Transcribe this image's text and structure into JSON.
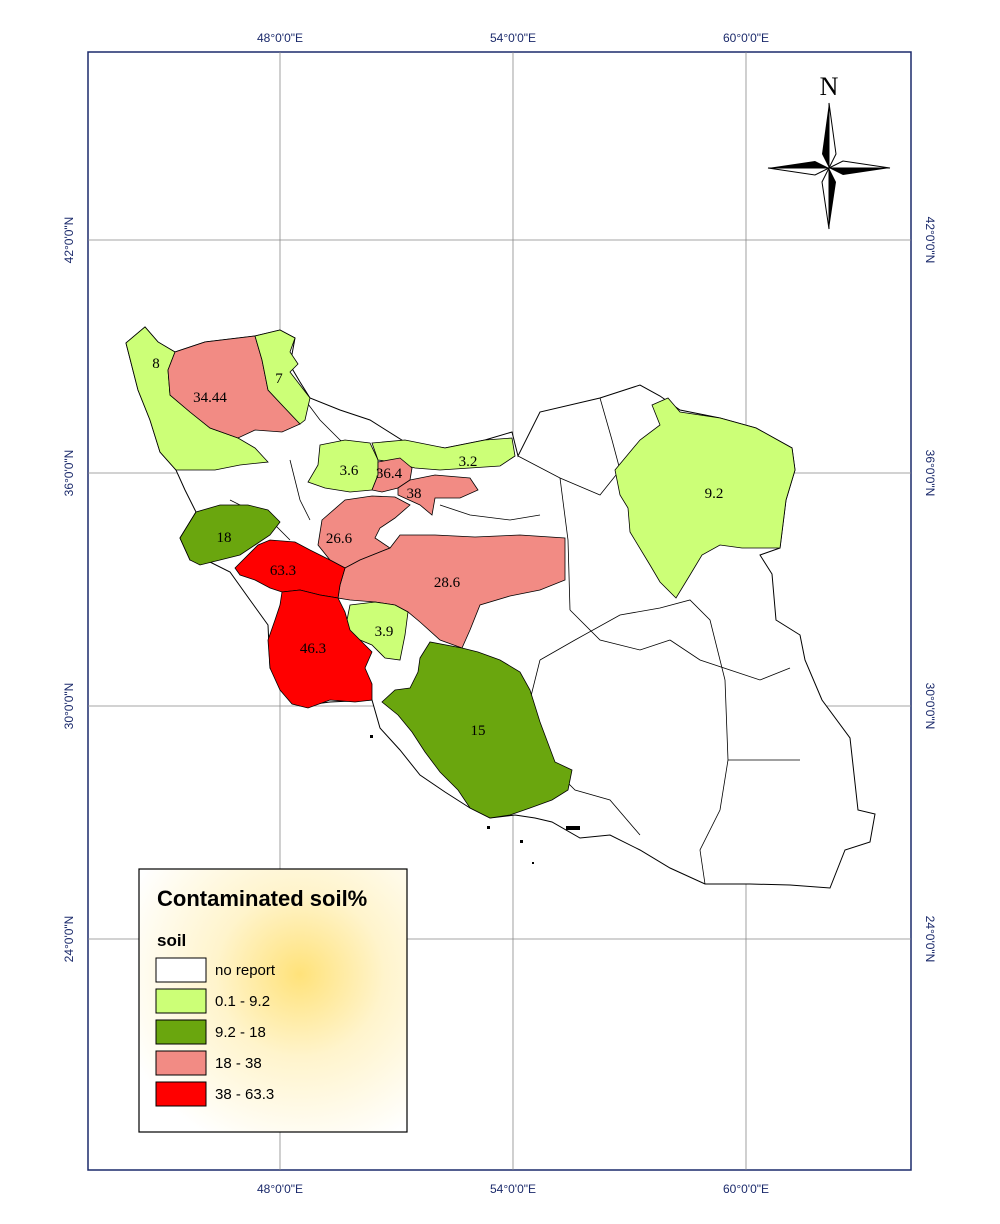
{
  "graticule": {
    "longitudes": [
      "48°0'0\"E",
      "54°0'0\"E",
      "60°0'0\"E"
    ],
    "latitudes": [
      "42°0'0\"N",
      "36°0'0\"N",
      "30°0'0\"N",
      "24°0'0\"N"
    ]
  },
  "north_arrow": {
    "label": "N"
  },
  "legend": {
    "title": "Contaminated soil%",
    "subtitle": "soil",
    "classes": [
      {
        "label": "no report",
        "color": "#ffffff"
      },
      {
        "label": "0.1 - 9.2",
        "color": "#ccff77"
      },
      {
        "label": "9.2 - 18",
        "color": "#6aa60e"
      },
      {
        "label": "18 - 38",
        "color": "#f28b84"
      },
      {
        "label": "38 - 63.3",
        "color": "#ff0000"
      }
    ]
  },
  "regions": [
    {
      "name": "west-azerbaijan",
      "value": "8",
      "class": 1
    },
    {
      "name": "east-azerbaijan",
      "value": "34.44",
      "class": 3
    },
    {
      "name": "ardabil",
      "value": "7",
      "class": 1
    },
    {
      "name": "qazvin",
      "value": "3.6",
      "class": 1
    },
    {
      "name": "tehran",
      "value": "36.4",
      "class": 3
    },
    {
      "name": "mazandaran",
      "value": "3.2",
      "class": 1
    },
    {
      "name": "semnan-west",
      "value": "38",
      "class": 3
    },
    {
      "name": "khorasan-razavi",
      "value": "9.2",
      "class": 1
    },
    {
      "name": "kermanshah",
      "value": "18",
      "class": 2
    },
    {
      "name": "markazi",
      "value": "26.6",
      "class": 3
    },
    {
      "name": "lorestan",
      "value": "63.3",
      "class": 4
    },
    {
      "name": "isfahan",
      "value": "28.6",
      "class": 3
    },
    {
      "name": "chaharmahal",
      "value": "3.9",
      "class": 1
    },
    {
      "name": "khuzestan",
      "value": "46.3",
      "class": 4
    },
    {
      "name": "fars",
      "value": "15",
      "class": 2
    }
  ]
}
